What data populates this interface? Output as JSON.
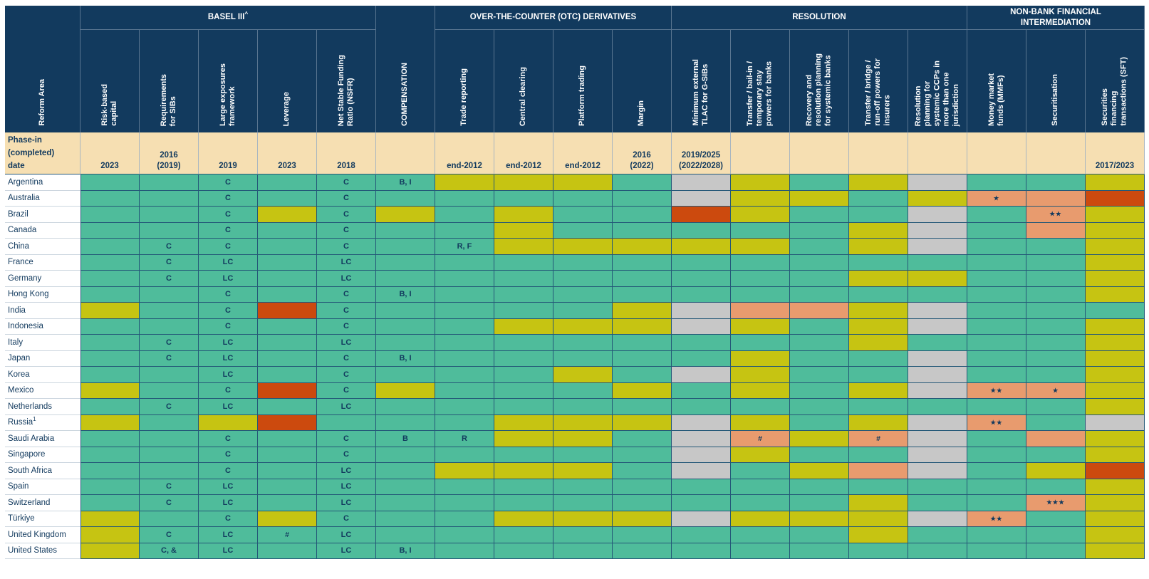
{
  "chart_data": {
    "type": "table",
    "subtype": "status-heatmap",
    "corner_label": "Reform Area",
    "phase_in_label": "Phase-in\n(completed)\ndate",
    "palette": {
      "G": "#4fbc9b",
      "Y": "#c6c412",
      "R": "#cc4a0e",
      "O": "#e89b6e",
      "X": "#c7c7c7"
    },
    "colors": {
      "header_bg": "#123a5e",
      "header_text": "#ffffff",
      "phase_in_bg": "#f6dfb2",
      "cell_text": "#123a5e",
      "grid_line": "#245878"
    },
    "groups": [
      {
        "label": "BASEL III",
        "sup": "^",
        "start": 0,
        "span": 5
      },
      {
        "label": "OVER-THE-COUNTER (OTC) DERIVATIVES",
        "start": 6,
        "span": 4
      },
      {
        "label": "RESOLUTION",
        "start": 10,
        "span": 5
      },
      {
        "label": "NON-BANK FINANCIAL\nINTERMEDIATION",
        "start": 15,
        "span": 3
      }
    ],
    "columns": [
      {
        "label": "Risk-based\ncapital",
        "phase_in": "2023"
      },
      {
        "label": "Requirements\nfor SIBs",
        "phase_in": "2016\n(2019)"
      },
      {
        "label": "Large exposures\nframework",
        "phase_in": "2019"
      },
      {
        "label": "Leverage",
        "phase_in": "2023"
      },
      {
        "label": "Net Stable Funding\nRatio (NSFR)",
        "phase_in": "2018"
      },
      {
        "label": "COMPENSATION",
        "phase_in": "",
        "full_height": true
      },
      {
        "label": "Trade reporting",
        "phase_in": "end-2012"
      },
      {
        "label": "Central clearing",
        "phase_in": "end-2012"
      },
      {
        "label": "Platform trading",
        "phase_in": "end-2012"
      },
      {
        "label": "Margin",
        "phase_in": "2016\n(2022)"
      },
      {
        "label": "Minimum external\nTLAC for G-SIBs",
        "phase_in": "2019/2025\n(2022/2028)"
      },
      {
        "label": "Transfer / bail-in /\ntemporary stay\npowers for banks",
        "phase_in": ""
      },
      {
        "label": "Recovery and\nresolution planning\nfor systemic banks",
        "phase_in": ""
      },
      {
        "label": "Transfer / bridge /\nrun-off powers for\ninsurers",
        "phase_in": ""
      },
      {
        "label": "Resolution\nplanning for\nsystemic CCPs in\nmore than one\njurisdiction",
        "phase_in": ""
      },
      {
        "label": "Money market\nfunds (MMFs)",
        "phase_in": ""
      },
      {
        "label": "Securitisation",
        "phase_in": ""
      },
      {
        "label": "Securities\nfinancing\ntransactions (SFT)",
        "phase_in": "2017/2023"
      }
    ],
    "rows": [
      {
        "label": "Argentina",
        "cells": [
          "G",
          "G",
          "G:C",
          "G",
          "G:C",
          "G:B, I",
          "Y",
          "Y",
          "Y",
          "G",
          "X",
          "Y",
          "G",
          "Y",
          "X",
          "G",
          "G",
          "Y"
        ]
      },
      {
        "label": "Australia",
        "cells": [
          "G",
          "G",
          "G:C",
          "G",
          "G:C",
          "G",
          "G",
          "G",
          "G",
          "G",
          "X",
          "Y",
          "Y",
          "G",
          "Y",
          "O:★",
          "O",
          "R"
        ]
      },
      {
        "label": "Brazil",
        "cells": [
          "G",
          "G",
          "G:C",
          "Y",
          "G:C",
          "Y",
          "G",
          "Y",
          "G",
          "G",
          "R",
          "Y",
          "G",
          "G",
          "X",
          "G",
          "O:★★",
          "Y"
        ]
      },
      {
        "label": "Canada",
        "cells": [
          "G",
          "G",
          "G:C",
          "G",
          "G:C",
          "G",
          "G",
          "Y",
          "G",
          "G",
          "G",
          "G",
          "G",
          "Y",
          "X",
          "G",
          "O",
          "Y"
        ]
      },
      {
        "label": "China",
        "cells": [
          "G",
          "G:C",
          "G:C",
          "G",
          "G:C",
          "G",
          "G:R, F",
          "Y",
          "Y",
          "Y",
          "Y",
          "Y",
          "G",
          "Y",
          "X",
          "G",
          "G",
          "Y"
        ]
      },
      {
        "label": "France",
        "cells": [
          "G",
          "G:C",
          "G:LC",
          "G",
          "G:LC",
          "G",
          "G",
          "G",
          "G",
          "G",
          "G",
          "G",
          "G",
          "G",
          "G",
          "G",
          "G",
          "Y"
        ]
      },
      {
        "label": "Germany",
        "cells": [
          "G",
          "G:C",
          "G:LC",
          "G",
          "G:LC",
          "G",
          "G",
          "G",
          "G",
          "G",
          "G",
          "G",
          "G",
          "Y",
          "Y",
          "G",
          "G",
          "Y"
        ]
      },
      {
        "label": "Hong Kong",
        "cells": [
          "G",
          "G",
          "G:C",
          "G",
          "G:C",
          "G:B, I",
          "G",
          "G",
          "G",
          "G",
          "G",
          "G",
          "G",
          "G",
          "G",
          "G",
          "G",
          "Y"
        ]
      },
      {
        "label": "India",
        "cells": [
          "Y",
          "G",
          "G:C",
          "R",
          "G:C",
          "G",
          "G",
          "G",
          "G",
          "Y",
          "X",
          "O",
          "O",
          "Y",
          "X",
          "G",
          "G",
          "G"
        ]
      },
      {
        "label": "Indonesia",
        "cells": [
          "G",
          "G",
          "G:C",
          "G",
          "G:C",
          "G",
          "G",
          "Y",
          "Y",
          "Y",
          "X",
          "Y",
          "G",
          "Y",
          "X",
          "G",
          "G",
          "Y"
        ]
      },
      {
        "label": "Italy",
        "cells": [
          "G",
          "G:C",
          "G:LC",
          "G",
          "G:LC",
          "G",
          "G",
          "G",
          "G",
          "G",
          "G",
          "G",
          "G",
          "Y",
          "G",
          "G",
          "G",
          "Y"
        ]
      },
      {
        "label": "Japan",
        "cells": [
          "G",
          "G:C",
          "G:LC",
          "G",
          "G:C",
          "G:B, I",
          "G",
          "G",
          "G",
          "G",
          "G",
          "Y",
          "G",
          "G",
          "X",
          "G",
          "G",
          "Y"
        ]
      },
      {
        "label": "Korea",
        "cells": [
          "G",
          "G",
          "G:LC",
          "G",
          "G:C",
          "G",
          "G",
          "G",
          "Y",
          "G",
          "X",
          "Y",
          "G",
          "G",
          "X",
          "G",
          "G",
          "Y"
        ]
      },
      {
        "label": "Mexico",
        "cells": [
          "Y",
          "G",
          "G:C",
          "R",
          "G:C",
          "Y",
          "G",
          "G",
          "G",
          "Y",
          "G",
          "Y",
          "G",
          "Y",
          "X",
          "O:★★",
          "O:★",
          "Y"
        ]
      },
      {
        "label": "Netherlands",
        "cells": [
          "G",
          "G:C",
          "G:LC",
          "G",
          "G:LC",
          "G",
          "G",
          "G",
          "G",
          "G",
          "G",
          "G",
          "G",
          "G",
          "G",
          "G",
          "G",
          "Y"
        ]
      },
      {
        "label": "Russia",
        "sup": "1",
        "cells": [
          "Y",
          "G",
          "Y",
          "R",
          "G",
          "G",
          "G",
          "Y",
          "Y",
          "Y",
          "X",
          "Y",
          "G",
          "Y",
          "X",
          "O:★★",
          "G",
          "X"
        ]
      },
      {
        "label": "Saudi Arabia",
        "cells": [
          "G",
          "G",
          "G:C",
          "G",
          "G:C",
          "G:B",
          "G:R",
          "Y",
          "Y",
          "G",
          "X",
          "O:#",
          "Y",
          "O:#",
          "X",
          "G",
          "O",
          "Y"
        ]
      },
      {
        "label": "Singapore",
        "cells": [
          "G",
          "G",
          "G:C",
          "G",
          "G:C",
          "G",
          "G",
          "G",
          "G",
          "G",
          "X",
          "Y",
          "G",
          "G",
          "X",
          "G",
          "G",
          "Y"
        ]
      },
      {
        "label": "South Africa",
        "cells": [
          "G",
          "G",
          "G:C",
          "G",
          "G:LC",
          "G",
          "Y",
          "Y",
          "Y",
          "G",
          "X",
          "G",
          "Y",
          "O",
          "X",
          "G",
          "Y",
          "R"
        ]
      },
      {
        "label": "Spain",
        "cells": [
          "G",
          "G:C",
          "G:LC",
          "G",
          "G:LC",
          "G",
          "G",
          "G",
          "G",
          "G",
          "G",
          "G",
          "G",
          "G",
          "G",
          "G",
          "G",
          "Y"
        ]
      },
      {
        "label": "Switzerland",
        "cells": [
          "G",
          "G:C",
          "G:LC",
          "G",
          "G:LC",
          "G",
          "G",
          "G",
          "G",
          "G",
          "G",
          "G",
          "G",
          "Y",
          "G",
          "G",
          "O:★★★",
          "Y"
        ]
      },
      {
        "label": "Türkiye",
        "cells": [
          "Y",
          "G",
          "G:C",
          "Y",
          "G:C",
          "G",
          "G",
          "Y",
          "Y",
          "Y",
          "X",
          "Y",
          "Y",
          "Y",
          "X",
          "O:★★",
          "G",
          "Y"
        ]
      },
      {
        "label": "United Kingdom",
        "cells": [
          "Y",
          "G:C",
          "G:LC",
          "G:#",
          "G:LC",
          "G",
          "G",
          "G",
          "G",
          "G",
          "G",
          "G",
          "G",
          "Y",
          "G",
          "G",
          "G",
          "Y"
        ]
      },
      {
        "label": "United States",
        "cells": [
          "Y",
          "G:C, &",
          "G:LC",
          "G",
          "G:LC",
          "G:B, I",
          "G",
          "G",
          "G",
          "G",
          "G",
          "G",
          "G",
          "G",
          "G",
          "G",
          "G",
          "Y"
        ]
      }
    ]
  }
}
